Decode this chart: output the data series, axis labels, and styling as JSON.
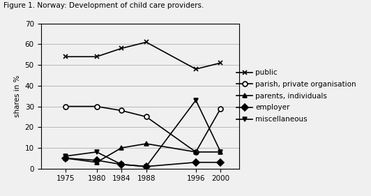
{
  "years": [
    1975,
    1980,
    1984,
    1988,
    1996,
    2000
  ],
  "series": {
    "public": [
      54,
      54,
      58,
      61,
      48,
      51
    ],
    "parish_private": [
      30,
      30,
      28,
      25,
      8,
      29
    ],
    "parents_individuals": [
      5,
      3,
      10,
      12,
      8,
      8
    ],
    "employer": [
      5,
      4,
      2,
      1,
      3,
      3
    ],
    "miscellaneous": [
      6,
      8,
      2,
      1,
      33,
      8
    ]
  },
  "series_order": [
    "public",
    "parish_private",
    "parents_individuals",
    "employer",
    "miscellaneous"
  ],
  "markers": {
    "public": "x",
    "parish_private": "o",
    "parents_individuals": "^",
    "employer": "D",
    "miscellaneous": "v"
  },
  "legend_labels": {
    "public": "public",
    "parish_private": "parish, private organisation",
    "parents_individuals": "parents, individuals",
    "employer": "employer",
    "miscellaneous": "miscellaneous"
  },
  "ylabel": "shares in %",
  "ylim": [
    0,
    70
  ],
  "yticks": [
    0,
    10,
    20,
    30,
    40,
    50,
    60,
    70
  ],
  "xlim": [
    1971,
    2003
  ],
  "line_color": "#000000",
  "background_color": "#f0f0f0",
  "title": "Figure 1. Norway: Development of child care providers.",
  "title_fontsize": 7.5,
  "tick_fontsize": 7.5,
  "legend_fontsize": 7.5,
  "ylabel_fontsize": 7.5
}
